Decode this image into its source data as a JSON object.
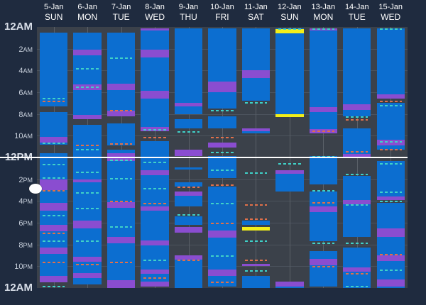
{
  "hour_labels": [
    {
      "hour": 0,
      "num": "12",
      "ap": "AM",
      "major": true
    },
    {
      "hour": 2,
      "num": "2",
      "ap": "AM"
    },
    {
      "hour": 4,
      "num": "4",
      "ap": "AM"
    },
    {
      "hour": 6,
      "num": "6",
      "ap": "AM"
    },
    {
      "hour": 8,
      "num": "8",
      "ap": "AM"
    },
    {
      "hour": 10,
      "num": "10",
      "ap": "AM"
    },
    {
      "hour": 12,
      "num": "12",
      "ap": "PM",
      "major": true
    },
    {
      "hour": 14,
      "num": "2",
      "ap": "PM"
    },
    {
      "hour": 16,
      "num": "4",
      "ap": "PM"
    },
    {
      "hour": 18,
      "num": "6",
      "ap": "PM"
    },
    {
      "hour": 20,
      "num": "8",
      "ap": "PM"
    },
    {
      "hour": 22,
      "num": "10",
      "ap": "PM"
    },
    {
      "hour": 24,
      "num": "12",
      "ap": "AM",
      "major": true
    }
  ],
  "colors": {
    "block": "#0c6ed0",
    "band": "#8a4dd0",
    "highlight": "#f2ee1a",
    "dash_a": "#3fd1c8",
    "dash_b": "#e0704a"
  },
  "scrubber_hour": 14.9,
  "days": [
    {
      "date": "5-Jan",
      "dow": "SUN",
      "blocks": [
        [
          0.5,
          7.3
        ],
        [
          7.8,
          10.8
        ],
        [
          11.6,
          23.5
        ]
      ],
      "bands": [
        [
          10.1,
          10.6
        ],
        [
          14.0,
          15.0
        ],
        [
          16.2,
          16.9
        ],
        [
          18.2,
          18.8
        ],
        [
          20.3,
          20.9
        ],
        [
          22.9,
          23.5
        ]
      ],
      "dashes": [
        [
          6.5,
          "a"
        ],
        [
          6.8,
          "b"
        ],
        [
          10.6,
          "a"
        ],
        [
          12.6,
          "a"
        ],
        [
          13.8,
          "a"
        ],
        [
          15.0,
          "b"
        ],
        [
          17.3,
          "a"
        ],
        [
          18.9,
          "b"
        ],
        [
          19.6,
          "a"
        ],
        [
          21.6,
          "b"
        ],
        [
          23.8,
          "a"
        ]
      ]
    },
    {
      "date": "6-Jan",
      "dow": "MON",
      "blocks": [
        [
          0.5,
          8.3
        ],
        [
          9.0,
          23.7
        ]
      ],
      "bands": [
        [
          2.1,
          2.6
        ],
        [
          5.3,
          5.8
        ],
        [
          8.1,
          8.5
        ],
        [
          14.0,
          14.3
        ],
        [
          17.8,
          18.5
        ],
        [
          21.1,
          21.6
        ],
        [
          22.6,
          23.1
        ]
      ],
      "dashes": [
        [
          3.8,
          "a"
        ],
        [
          5.5,
          "a"
        ],
        [
          10.8,
          "b"
        ],
        [
          11.2,
          "a"
        ],
        [
          13.3,
          "a"
        ],
        [
          15.2,
          "a"
        ],
        [
          16.6,
          "a"
        ],
        [
          19.6,
          "a"
        ],
        [
          21.8,
          "b"
        ]
      ]
    },
    {
      "date": "7-Jan",
      "dow": "TUE",
      "blocks": [
        [
          0.5,
          8.2
        ],
        [
          8.9,
          10.9
        ],
        [
          11.3,
          23.9
        ]
      ],
      "bands": [
        [
          5.2,
          5.8
        ],
        [
          7.7,
          8.2
        ],
        [
          11.6,
          12.3
        ],
        [
          16.1,
          16.6
        ],
        [
          19.3,
          19.9
        ],
        [
          23.3,
          24.0
        ]
      ],
      "dashes": [
        [
          2.8,
          "a"
        ],
        [
          7.6,
          "b"
        ],
        [
          10.7,
          "b"
        ],
        [
          12.2,
          "a"
        ],
        [
          13.9,
          "a"
        ],
        [
          16.0,
          "b"
        ],
        [
          18.3,
          "a"
        ],
        [
          21.6,
          "b"
        ]
      ]
    },
    {
      "date": "8-Jan",
      "dow": "WED",
      "blocks": [
        [
          0.1,
          9.6
        ],
        [
          10.5,
          23.9
        ]
      ],
      "bands": [
        [
          0.1,
          0.3
        ],
        [
          2.1,
          2.8
        ],
        [
          5.9,
          6.6
        ],
        [
          9.2,
          9.6
        ],
        [
          13.2,
          13.6
        ],
        [
          16.5,
          16.9
        ],
        [
          19.6,
          20.1
        ],
        [
          22.3,
          22.7
        ],
        [
          23.4,
          23.9
        ]
      ],
      "dashes": [
        [
          9.4,
          "a"
        ],
        [
          10.1,
          "b"
        ],
        [
          12.4,
          "a"
        ],
        [
          14.8,
          "a"
        ],
        [
          16.2,
          "b"
        ],
        [
          21.4,
          "a"
        ],
        [
          23.0,
          "b"
        ]
      ]
    },
    {
      "date": "9-Jan",
      "dow": "THU",
      "blocks": [
        [
          0.1,
          8.0
        ],
        [
          8.5,
          9.3
        ],
        [
          12.9,
          13.1
        ],
        [
          14.3,
          14.7
        ],
        [
          15.3,
          16.5
        ],
        [
          17.4,
          18.2
        ],
        [
          21.1,
          24.0
        ]
      ],
      "bands": [
        [
          7.0,
          7.3
        ],
        [
          11.3,
          11.9
        ],
        [
          15.1,
          15.5
        ],
        [
          18.4,
          18.9
        ],
        [
          21.0,
          21.4
        ]
      ],
      "dashes": [
        [
          9.6,
          "a"
        ],
        [
          14.7,
          "b"
        ],
        [
          17.2,
          "a"
        ],
        [
          21.4,
          "b"
        ]
      ]
    },
    {
      "date": "10-Jan",
      "dow": "FRI",
      "blocks": [
        [
          0.1,
          7.5
        ],
        [
          8.2,
          9.3
        ],
        [
          11.9,
          13.9
        ],
        [
          14.7,
          23.9
        ]
      ],
      "bands": [
        [
          5.0,
          6.0
        ],
        [
          10.6,
          11.1
        ],
        [
          18.7,
          19.4
        ],
        [
          22.3,
          22.9
        ]
      ],
      "dashes": [
        [
          7.6,
          "a"
        ],
        [
          10.1,
          "b"
        ],
        [
          11.5,
          "a"
        ],
        [
          13.1,
          "a"
        ],
        [
          14.5,
          "b"
        ],
        [
          16.2,
          "a"
        ],
        [
          18.0,
          "b"
        ],
        [
          21.0,
          "a"
        ],
        [
          23.4,
          "b"
        ]
      ]
    },
    {
      "date": "11-Jan",
      "dow": "SAT",
      "blocks": [
        [
          0.1,
          6.8
        ],
        [
          9.4,
          9.8
        ],
        [
          17.8,
          18.2
        ],
        [
          21.8,
          22.0
        ],
        [
          22.9,
          24.0
        ]
      ],
      "bands": [
        [
          4.0,
          4.7
        ],
        [
          9.3,
          9.6
        ],
        [
          18.4,
          18.7,
          "yellow"
        ],
        [
          21.8,
          22.0
        ]
      ],
      "dashes": [
        [
          6.9,
          "a"
        ],
        [
          13.4,
          "a"
        ],
        [
          16.3,
          "b"
        ],
        [
          17.6,
          "b"
        ],
        [
          19.6,
          "a"
        ],
        [
          21.4,
          "b"
        ],
        [
          22.4,
          "a"
        ]
      ]
    },
    {
      "date": "12-Jan",
      "dow": "SUN",
      "blocks": [
        [
          0.1,
          8.3
        ],
        [
          13.3,
          15.1
        ],
        [
          23.5,
          24.0
        ]
      ],
      "bands": [
        [
          0.2,
          0.6,
          "yellow"
        ],
        [
          8.0,
          8.3,
          "yellow"
        ],
        [
          13.2,
          13.5
        ],
        [
          23.4,
          23.9
        ]
      ],
      "dashes": [
        [
          0.1,
          "a"
        ],
        [
          12.5,
          "a"
        ]
      ]
    },
    {
      "date": "13-Jan",
      "dow": "MON",
      "blocks": [
        [
          0.1,
          9.6
        ],
        [
          11.9,
          14.5
        ],
        [
          15.1,
          19.7
        ],
        [
          20.6,
          23.9
        ]
      ],
      "bands": [
        [
          0.1,
          0.3
        ],
        [
          7.4,
          7.8
        ],
        [
          9.4,
          9.8
        ],
        [
          16.5,
          17.0
        ],
        [
          21.3,
          21.9
        ]
      ],
      "dashes": [
        [
          0.1,
          "a"
        ],
        [
          9.5,
          "b"
        ],
        [
          11.9,
          "a"
        ],
        [
          15.0,
          "a"
        ],
        [
          16.1,
          "b"
        ],
        [
          19.8,
          "a"
        ],
        [
          22.0,
          "b"
        ]
      ]
    },
    {
      "date": "14-Jan",
      "dow": "TUE",
      "blocks": [
        [
          0.1,
          8.2
        ],
        [
          9.3,
          11.9
        ],
        [
          13.7,
          19.3
        ],
        [
          20.3,
          24.0
        ]
      ],
      "bands": [
        [
          7.1,
          7.6
        ],
        [
          11.7,
          12.0
        ],
        [
          15.9,
          16.3
        ],
        [
          22.1,
          22.5
        ]
      ],
      "dashes": [
        [
          8.2,
          "a"
        ],
        [
          8.5,
          "b"
        ],
        [
          11.4,
          "b"
        ],
        [
          13.5,
          "a"
        ],
        [
          16.3,
          "a"
        ],
        [
          19.8,
          "a"
        ],
        [
          22.6,
          "b"
        ],
        [
          23.8,
          "a"
        ]
      ]
    },
    {
      "date": "15-Jan",
      "dow": "WED",
      "blocks": [
        [
          0.1,
          6.2
        ],
        [
          7.0,
          11.3
        ],
        [
          12.3,
          15.9
        ],
        [
          16.2,
          24.0
        ]
      ],
      "bands": [
        [
          6.2,
          6.6
        ],
        [
          10.4,
          10.9
        ],
        [
          15.6,
          15.9
        ],
        [
          18.5,
          19.3
        ],
        [
          21.0,
          21.5
        ],
        [
          23.2,
          23.9
        ]
      ],
      "dashes": [
        [
          0.1,
          "a"
        ],
        [
          6.8,
          "b"
        ],
        [
          7.2,
          "a"
        ],
        [
          10.5,
          "a"
        ],
        [
          11.2,
          "b"
        ],
        [
          12.5,
          "a"
        ],
        [
          15.1,
          "a"
        ],
        [
          16.0,
          "a"
        ],
        [
          20.9,
          "b"
        ],
        [
          22.3,
          "a"
        ]
      ]
    }
  ]
}
